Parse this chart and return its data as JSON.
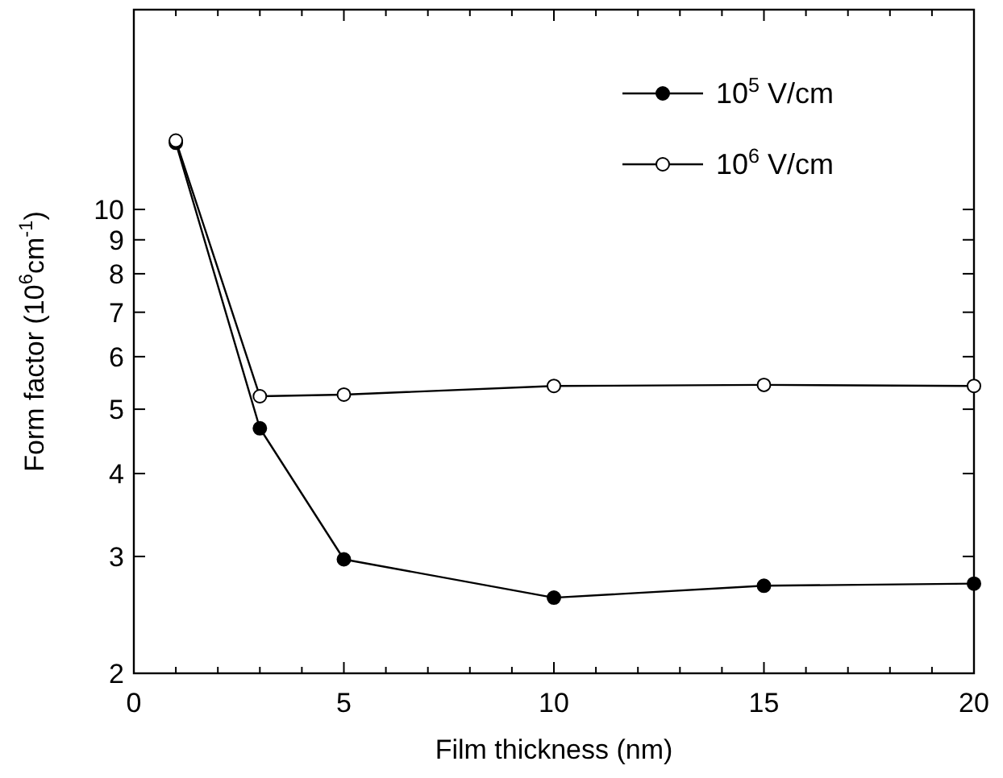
{
  "chart_data": {
    "type": "line",
    "xlabel": "Film thickness (nm)",
    "ylabel": "Form factor (10$^{6}$cm$^{-1}$)",
    "log": "y",
    "xlim": [
      0,
      20
    ],
    "ylim": [
      2,
      20
    ],
    "xticks": [
      0,
      {
        "value": 1,
        "label": null
      },
      {
        "value": 2,
        "label": null
      },
      {
        "value": 3,
        "label": null
      },
      {
        "value": 4,
        "label": null
      },
      5,
      {
        "value": 6,
        "label": null
      },
      {
        "value": 7,
        "label": null
      },
      {
        "value": 8,
        "label": null
      },
      {
        "value": 9,
        "label": null
      },
      10,
      {
        "value": 11,
        "label": null
      },
      {
        "value": 12,
        "label": null
      },
      {
        "value": 13,
        "label": null
      },
      {
        "value": 14,
        "label": null
      },
      15,
      {
        "value": 16,
        "label": null
      },
      {
        "value": 17,
        "label": null
      },
      {
        "value": 18,
        "label": null
      },
      {
        "value": 19,
        "label": null
      },
      20
    ],
    "yticks": [
      2,
      3,
      4,
      5,
      6,
      7,
      8,
      9,
      10
    ],
    "x": [
      1,
      3,
      5,
      10,
      15,
      20
    ],
    "legend": "top right",
    "marker": "circle",
    "line_style": "solid",
    "series": [
      {
        "name": "10$^{5}$ V/cm",
        "color": "#000000",
        "values": [
          12.6,
          4.68,
          2.97,
          2.6,
          2.71,
          2.73
        ]
      },
      {
        "name": "10$^{6}$ V/cm",
        "color": "#ffffff",
        "values": [
          12.7,
          5.23,
          5.26,
          5.42,
          5.44,
          5.42
        ]
      }
    ]
  }
}
